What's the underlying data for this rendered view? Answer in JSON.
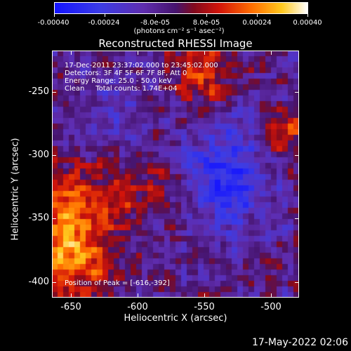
{
  "colorbar": {
    "tick_labels": [
      "-0.00040",
      "-0.00024",
      "-8.0e-05",
      "8.0e-05",
      "0.00024",
      "0.00040"
    ],
    "units": "(photons cm⁻² s⁻¹ asec⁻²)",
    "range": [
      -0.0004,
      0.0004
    ]
  },
  "title": "Reconstructed RHESSI Image",
  "annotations": {
    "line1": "17-Dec-2011 23:37:02.000 to 23:45:02.000",
    "line2": "Detectors: 3F 4F 5F 6F 7F 8F, Att 0",
    "line3": "Energy Range: 25.0 - 50.0 keV",
    "line4": "Clean     Total counts: 1.74E+04",
    "peak": "Position of Peak = [-616,-392]"
  },
  "axes": {
    "xlabel": "Heliocentric X (arcsec)",
    "ylabel": "Heliocentric Y (arcsec)",
    "xticks": [
      "-650",
      "-600",
      "-550",
      "-500"
    ],
    "yticks": [
      "-250",
      "-300",
      "-350",
      "-400"
    ],
    "xlim": [
      -662,
      -477
    ],
    "ylim": [
      -410,
      -225
    ]
  },
  "timestamp": "17-May-2022 02:06"
}
